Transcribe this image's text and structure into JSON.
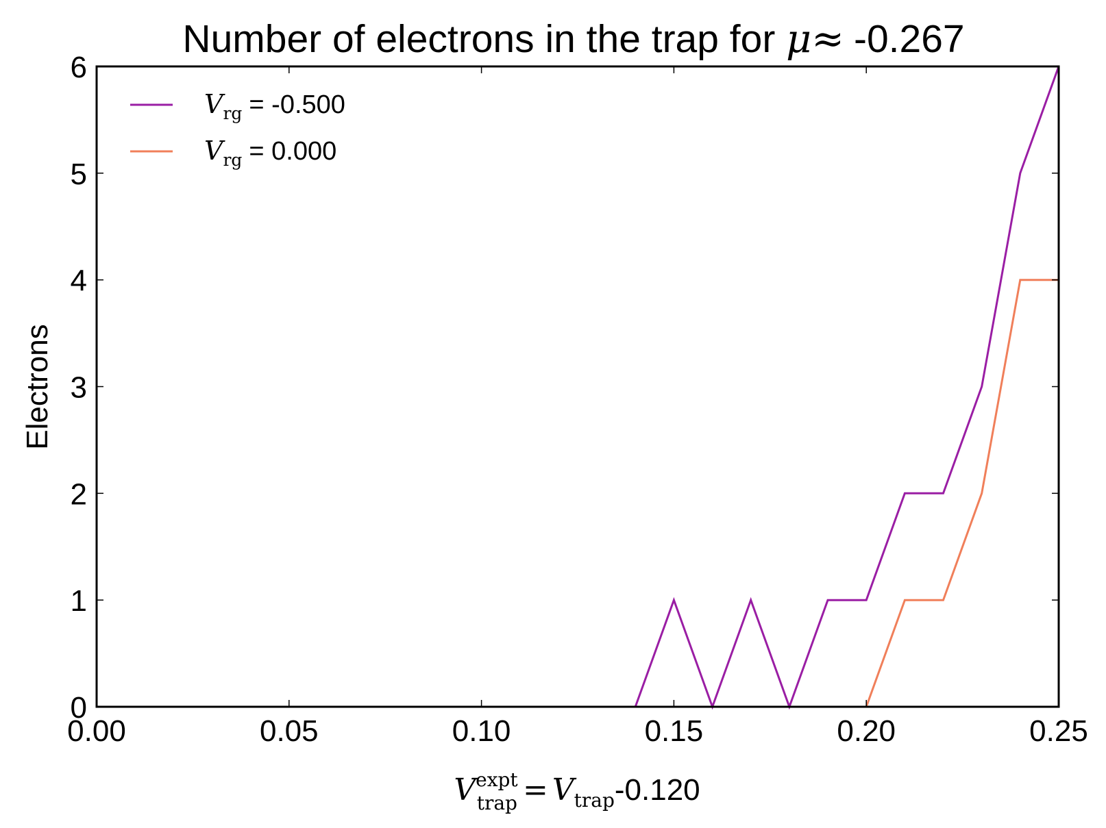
{
  "chart_data": {
    "type": "line",
    "title": {
      "prefix": "Number of electrons in the trap for ",
      "symbol": "μ",
      "approx": "≈",
      "value": "-0.267"
    },
    "xlabel": {
      "var": "V",
      "sup": "expt",
      "sub": "trap",
      "eq": "=",
      "rhs_var": "V",
      "rhs_sub": "trap",
      "offset": "-0.120"
    },
    "ylabel": "Electrons",
    "xlim": [
      0.0,
      0.25
    ],
    "ylim": [
      0,
      6
    ],
    "x_ticks": [
      0.0,
      0.05,
      0.1,
      0.15,
      0.2,
      0.25
    ],
    "x_tick_labels": [
      "0.00",
      "0.05",
      "0.10",
      "0.15",
      "0.20",
      "0.25"
    ],
    "y_ticks": [
      0,
      1,
      2,
      3,
      4,
      5,
      6
    ],
    "y_tick_labels": [
      "0",
      "1",
      "2",
      "3",
      "4",
      "5",
      "6"
    ],
    "grid": false,
    "legend_position": "top-left",
    "series": [
      {
        "legend_var": "V",
        "legend_sub": "rg",
        "legend_value": "= -0.500",
        "color": "#9a1ea4",
        "x": [
          0.14,
          0.15,
          0.16,
          0.17,
          0.18,
          0.19,
          0.2,
          0.21,
          0.22,
          0.23,
          0.24,
          0.25
        ],
        "y": [
          0,
          1,
          0,
          1,
          0,
          1,
          1,
          2,
          2,
          3,
          5,
          6
        ]
      },
      {
        "legend_var": "V",
        "legend_sub": "rg",
        "legend_value": "= 0.000",
        "color": "#f07f5a",
        "x": [
          0.2,
          0.21,
          0.22,
          0.23,
          0.24,
          0.25
        ],
        "y": [
          0,
          1,
          1,
          2,
          4,
          4
        ]
      }
    ]
  }
}
